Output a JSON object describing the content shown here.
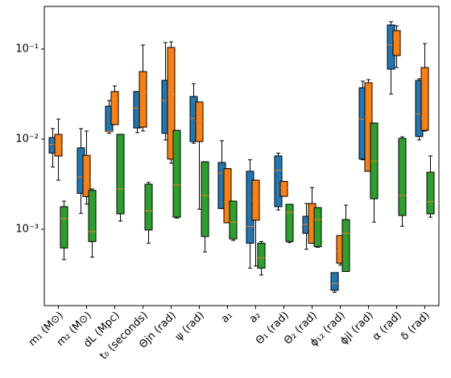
{
  "chart_data": {
    "type": "box",
    "yscale": "log",
    "ylim": [
      0.000142,
      0.297
    ],
    "yticks": [
      {
        "value": 0.1,
        "label": "10⁻¹"
      },
      {
        "value": 0.01,
        "label": "10⁻²"
      },
      {
        "value": 0.001,
        "label": "10⁻³"
      }
    ],
    "median_color": "#ff7f0e",
    "categories": [
      "m₁ (M⊙)",
      "m₂ (M⊙)",
      "dL (Mpc)",
      "t₀ (seconds)",
      "Θjn (rad)",
      "ψ (rad)",
      "a₁",
      "a₂",
      "Θ₁ (rad)",
      "Θ₂ (rad)",
      "ϕ₁₂ (rad)",
      "ϕjl (rad)",
      "α (rad)",
      "δ (rad)"
    ],
    "series": [
      {
        "color": "#1f77b4",
        "whislo": [
          0.0049,
          0.0015,
          0.0116,
          0.0118,
          0.0098,
          0.009,
          0.0017,
          0.00037,
          0.00164,
          0.0006,
          0.0002,
          0.0059,
          0.0316,
          0.0098
        ],
        "q1": [
          0.007,
          0.0025,
          0.0121,
          0.0133,
          0.0116,
          0.0094,
          0.0017,
          0.0007,
          0.00178,
          0.0009,
          0.00021,
          0.006,
          0.0598,
          0.0107
        ],
        "med": [
          0.0087,
          0.0038,
          0.0122,
          0.022,
          0.0268,
          0.017,
          0.0042,
          0.00107,
          0.0045,
          0.00113,
          0.00025,
          0.0167,
          0.111,
          0.019
        ],
        "q3": [
          0.0104,
          0.008,
          0.0232,
          0.0337,
          0.0449,
          0.0297,
          0.0055,
          0.0044,
          0.0065,
          0.00139,
          0.00033,
          0.0372,
          0.185,
          0.0449
        ],
        "whishi": [
          0.0131,
          0.0131,
          0.0268,
          0.0337,
          0.118,
          0.0413,
          0.0096,
          0.0059,
          0.007,
          0.00193,
          0.00033,
          0.044,
          0.201,
          0.0468
        ]
      },
      {
        "color": "#ff7f0e",
        "whislo": [
          0.0035,
          0.0019,
          0.0145,
          0.0123,
          0.0054,
          0.00167,
          0.00118,
          0.00039,
          0.00232,
          0.0007,
          0.0004,
          0.0044,
          0.0623,
          0.0123
        ],
        "q1": [
          0.0065,
          0.0023,
          0.0145,
          0.0136,
          0.006,
          0.0094,
          0.00118,
          0.00126,
          0.00232,
          0.0007,
          0.00042,
          0.0044,
          0.0848,
          0.0125
        ],
        "med": [
          0.0087,
          0.0032,
          0.0247,
          0.033,
          0.0316,
          0.016,
          0.002,
          0.0021,
          0.0029,
          0.00104,
          0.00057,
          0.0178,
          0.131,
          0.017
        ],
        "q3": [
          0.0113,
          0.0066,
          0.0337,
          0.0562,
          0.104,
          0.0258,
          0.0047,
          0.0035,
          0.0034,
          0.00193,
          0.00085,
          0.0422,
          0.16,
          0.0623
        ],
        "whishi": [
          0.0167,
          0.0123,
          0.0389,
          0.111,
          0.12,
          0.0258,
          0.0047,
          0.0035,
          0.0034,
          0.0029,
          0.00085,
          0.0458,
          0.181,
          0.115
        ]
      },
      {
        "color": "#2ca02c",
        "whislo": [
          0.00046,
          0.00049,
          0.00123,
          0.0007,
          0.00133,
          0.00056,
          0.00075,
          0.00031,
          0.00071,
          0.00063,
          0.00034,
          0.0012,
          0.00108,
          0.00136
        ],
        "q1": [
          0.00062,
          0.00073,
          0.00148,
          0.00098,
          0.00136,
          0.00083,
          0.00078,
          0.00037,
          0.00073,
          0.00064,
          0.00034,
          0.00218,
          0.00142,
          0.00148
        ],
        "med": [
          0.00131,
          0.00094,
          0.0028,
          0.0016,
          0.0031,
          0.00237,
          0.0012,
          0.00048,
          0.00154,
          0.00128,
          0.0009,
          0.0057,
          0.00237,
          0.00202
        ],
        "q3": [
          0.00178,
          0.0027,
          0.0113,
          0.00316,
          0.0125,
          0.0056,
          0.00205,
          0.0007,
          0.00189,
          0.00174,
          0.00128,
          0.0151,
          0.0102,
          0.0043
        ],
        "whishi": [
          0.00205,
          0.0028,
          0.0113,
          0.0033,
          0.0125,
          0.0056,
          0.00205,
          0.00073,
          0.00189,
          0.00174,
          0.00185,
          0.0151,
          0.0106,
          0.0065
        ]
      }
    ]
  }
}
